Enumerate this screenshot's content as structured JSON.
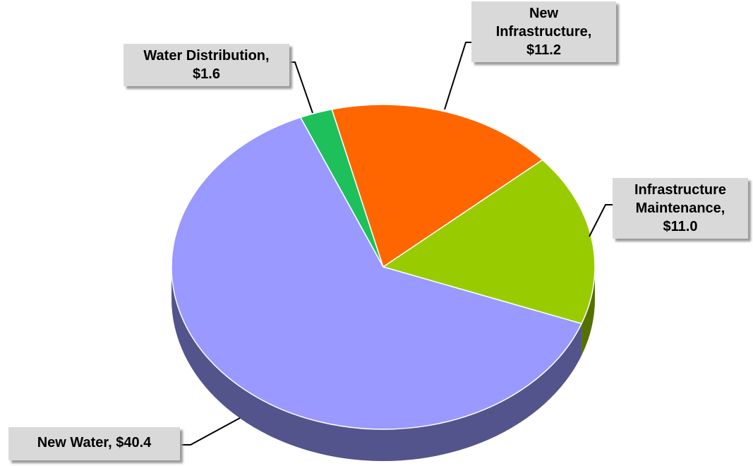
{
  "chart_data": {
    "type": "pie3d",
    "categories": [
      "Water Distribution",
      "New Infrastructure",
      "Infrastructure Maintenance",
      "New Water"
    ],
    "values": [
      1.6,
      11.2,
      11.0,
      40.4
    ],
    "value_labels": [
      "$1.6",
      "$11.2",
      "$11.0",
      "$40.4"
    ],
    "label_separator": ", ",
    "colors": [
      "#1ec05c",
      "#ff6600",
      "#99cc00",
      "#9999ff"
    ]
  }
}
